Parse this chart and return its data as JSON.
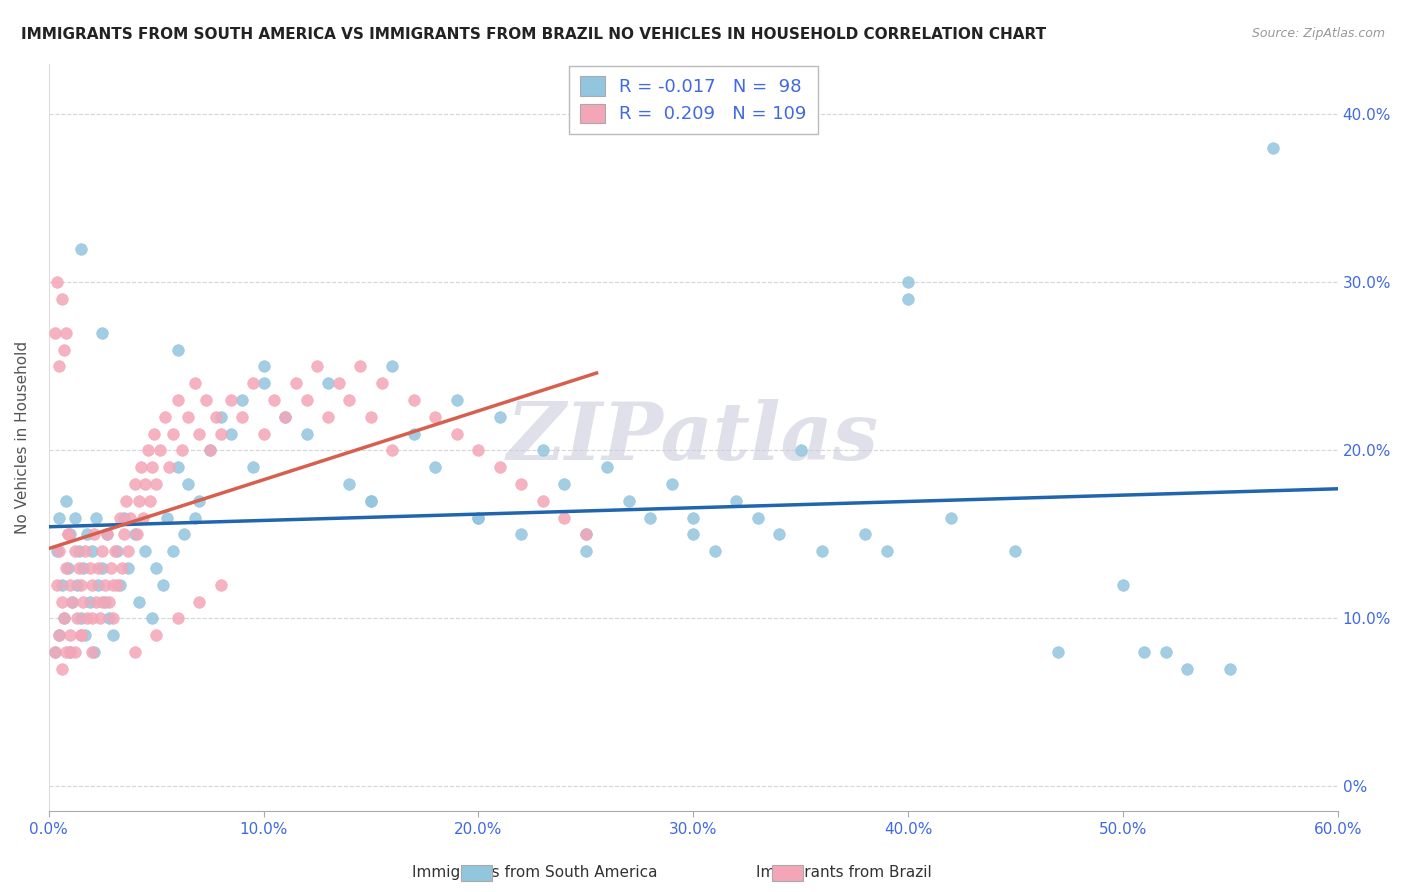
{
  "title": "IMMIGRANTS FROM SOUTH AMERICA VS IMMIGRANTS FROM BRAZIL NO VEHICLES IN HOUSEHOLD CORRELATION CHART",
  "source": "Source: ZipAtlas.com",
  "ylabel": "No Vehicles in Household",
  "legend_blue_R": "-0.017",
  "legend_blue_N": "98",
  "legend_pink_R": "0.209",
  "legend_pink_N": "109",
  "legend_label_blue": "Immigrants from South America",
  "legend_label_pink": "Immigrants from Brazil",
  "blue_color": "#92C5DE",
  "pink_color": "#F4A6B8",
  "blue_line_color": "#2166AC",
  "pink_line_color": "#D6604D",
  "watermark": "ZIPatlas",
  "watermark_color": "#CCCCDD",
  "xlim": [
    0.0,
    0.6
  ],
  "ylim": [
    -0.015,
    0.43
  ],
  "xtick_vals": [
    0.0,
    0.1,
    0.2,
    0.3,
    0.4,
    0.5,
    0.6
  ],
  "xtick_labels": [
    "0.0%",
    "10.0%",
    "20.0%",
    "30.0%",
    "40.0%",
    "50.0%",
    "60.0%"
  ],
  "ytick_vals": [
    0.0,
    0.1,
    0.2,
    0.3,
    0.4
  ],
  "ytick_labels": [
    "0%",
    "10.0%",
    "20.0%",
    "30.0%",
    "40.0%"
  ],
  "blue_scatter_x": [
    0.003,
    0.004,
    0.005,
    0.005,
    0.006,
    0.007,
    0.008,
    0.009,
    0.01,
    0.01,
    0.011,
    0.012,
    0.013,
    0.014,
    0.015,
    0.016,
    0.017,
    0.018,
    0.019,
    0.02,
    0.021,
    0.022,
    0.023,
    0.025,
    0.026,
    0.027,
    0.028,
    0.03,
    0.032,
    0.033,
    0.035,
    0.037,
    0.04,
    0.042,
    0.045,
    0.048,
    0.05,
    0.053,
    0.055,
    0.058,
    0.06,
    0.063,
    0.065,
    0.068,
    0.07,
    0.075,
    0.08,
    0.085,
    0.09,
    0.095,
    0.1,
    0.11,
    0.12,
    0.13,
    0.14,
    0.15,
    0.16,
    0.17,
    0.18,
    0.19,
    0.2,
    0.21,
    0.22,
    0.23,
    0.24,
    0.25,
    0.26,
    0.27,
    0.28,
    0.29,
    0.3,
    0.31,
    0.32,
    0.33,
    0.35,
    0.36,
    0.38,
    0.39,
    0.4,
    0.42,
    0.45,
    0.47,
    0.5,
    0.51,
    0.52,
    0.53,
    0.55,
    0.57,
    0.34,
    0.015,
    0.025,
    0.06,
    0.1,
    0.15,
    0.2,
    0.25,
    0.3,
    0.4
  ],
  "blue_scatter_y": [
    0.08,
    0.14,
    0.09,
    0.16,
    0.12,
    0.1,
    0.17,
    0.13,
    0.15,
    0.08,
    0.11,
    0.16,
    0.12,
    0.14,
    0.1,
    0.13,
    0.09,
    0.15,
    0.11,
    0.14,
    0.08,
    0.16,
    0.12,
    0.13,
    0.11,
    0.15,
    0.1,
    0.09,
    0.14,
    0.12,
    0.16,
    0.13,
    0.15,
    0.11,
    0.14,
    0.1,
    0.13,
    0.12,
    0.16,
    0.14,
    0.19,
    0.15,
    0.18,
    0.16,
    0.17,
    0.2,
    0.22,
    0.21,
    0.23,
    0.19,
    0.25,
    0.22,
    0.21,
    0.24,
    0.18,
    0.17,
    0.25,
    0.21,
    0.19,
    0.23,
    0.16,
    0.22,
    0.15,
    0.2,
    0.18,
    0.14,
    0.19,
    0.17,
    0.16,
    0.18,
    0.15,
    0.14,
    0.17,
    0.16,
    0.2,
    0.14,
    0.15,
    0.14,
    0.3,
    0.16,
    0.14,
    0.08,
    0.12,
    0.08,
    0.08,
    0.07,
    0.07,
    0.38,
    0.15,
    0.32,
    0.27,
    0.26,
    0.24,
    0.17,
    0.16,
    0.15,
    0.16,
    0.29
  ],
  "pink_scatter_x": [
    0.003,
    0.004,
    0.005,
    0.005,
    0.006,
    0.006,
    0.007,
    0.008,
    0.008,
    0.009,
    0.01,
    0.01,
    0.011,
    0.012,
    0.012,
    0.013,
    0.014,
    0.015,
    0.015,
    0.016,
    0.017,
    0.018,
    0.019,
    0.02,
    0.02,
    0.021,
    0.022,
    0.023,
    0.024,
    0.025,
    0.026,
    0.027,
    0.028,
    0.029,
    0.03,
    0.031,
    0.032,
    0.033,
    0.034,
    0.035,
    0.036,
    0.037,
    0.038,
    0.04,
    0.041,
    0.042,
    0.043,
    0.044,
    0.045,
    0.046,
    0.047,
    0.048,
    0.049,
    0.05,
    0.052,
    0.054,
    0.056,
    0.058,
    0.06,
    0.062,
    0.065,
    0.068,
    0.07,
    0.073,
    0.075,
    0.078,
    0.08,
    0.085,
    0.09,
    0.095,
    0.1,
    0.105,
    0.11,
    0.115,
    0.12,
    0.125,
    0.13,
    0.135,
    0.14,
    0.145,
    0.15,
    0.155,
    0.16,
    0.17,
    0.18,
    0.19,
    0.2,
    0.21,
    0.22,
    0.23,
    0.24,
    0.25,
    0.003,
    0.004,
    0.005,
    0.006,
    0.007,
    0.008,
    0.009,
    0.01,
    0.015,
    0.02,
    0.025,
    0.03,
    0.04,
    0.05,
    0.06,
    0.07,
    0.08
  ],
  "pink_scatter_y": [
    0.08,
    0.12,
    0.09,
    0.14,
    0.11,
    0.07,
    0.1,
    0.13,
    0.08,
    0.15,
    0.09,
    0.12,
    0.11,
    0.08,
    0.14,
    0.1,
    0.13,
    0.09,
    0.12,
    0.11,
    0.14,
    0.1,
    0.13,
    0.12,
    0.08,
    0.15,
    0.11,
    0.13,
    0.1,
    0.14,
    0.12,
    0.15,
    0.11,
    0.13,
    0.1,
    0.14,
    0.12,
    0.16,
    0.13,
    0.15,
    0.17,
    0.14,
    0.16,
    0.18,
    0.15,
    0.17,
    0.19,
    0.16,
    0.18,
    0.2,
    0.17,
    0.19,
    0.21,
    0.18,
    0.2,
    0.22,
    0.19,
    0.21,
    0.23,
    0.2,
    0.22,
    0.24,
    0.21,
    0.23,
    0.2,
    0.22,
    0.21,
    0.23,
    0.22,
    0.24,
    0.21,
    0.23,
    0.22,
    0.24,
    0.23,
    0.25,
    0.22,
    0.24,
    0.23,
    0.25,
    0.22,
    0.24,
    0.2,
    0.23,
    0.22,
    0.21,
    0.2,
    0.19,
    0.18,
    0.17,
    0.16,
    0.15,
    0.27,
    0.3,
    0.25,
    0.29,
    0.26,
    0.27,
    0.15,
    0.08,
    0.09,
    0.1,
    0.11,
    0.12,
    0.08,
    0.09,
    0.1,
    0.11,
    0.12
  ]
}
